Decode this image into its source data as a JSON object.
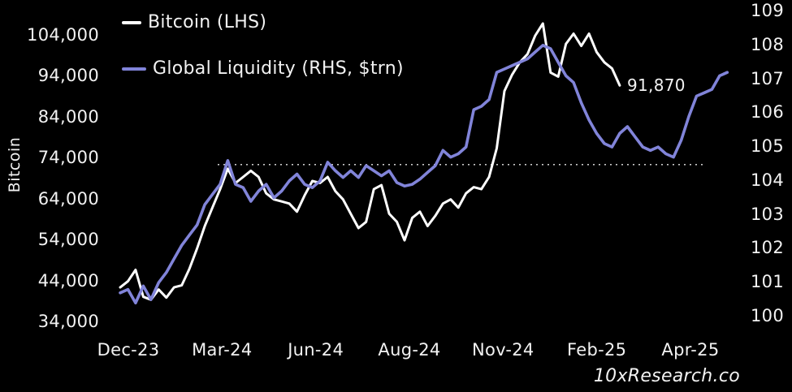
{
  "legend": [
    {
      "label": "Bitcoin (LHS)",
      "color": "#ffffff"
    },
    {
      "label": "Global Liquidity (RHS, $trn)",
      "color": "#8184d9"
    }
  ],
  "annotation": {
    "text": "91,870"
  },
  "watermark": {
    "text": "10xResearch.co"
  },
  "chart_data": {
    "type": "line",
    "title": "",
    "x_start": "Dec-2023",
    "x_interval": "weekly",
    "left_axis": {
      "title": "Bitcoin",
      "range": [
        34000,
        104000
      ],
      "ticks": [
        {
          "label": "104,000",
          "value": 104000
        },
        {
          "label": "94,000",
          "value": 94000
        },
        {
          "label": "84,000",
          "value": 84000
        },
        {
          "label": "74,000",
          "value": 74000
        },
        {
          "label": "64,000",
          "value": 64000
        },
        {
          "label": "54,000",
          "value": 54000
        },
        {
          "label": "44,000",
          "value": 44000
        },
        {
          "label": "34,000",
          "value": 34000
        }
      ]
    },
    "right_axis": {
      "title": "Global Liquidity ($trn)",
      "range": [
        100,
        109
      ],
      "ticks": [
        {
          "label": "109",
          "value": 109
        },
        {
          "label": "108",
          "value": 108
        },
        {
          "label": "107",
          "value": 107
        },
        {
          "label": "106",
          "value": 106
        },
        {
          "label": "105",
          "value": 105
        },
        {
          "label": "104",
          "value": 104
        },
        {
          "label": "103",
          "value": 103
        },
        {
          "label": "102",
          "value": 102
        },
        {
          "label": "101",
          "value": 101
        },
        {
          "label": "100",
          "value": 100
        }
      ]
    },
    "x_axis": {
      "labels": [
        "Dec-23",
        "Mar-24",
        "Jun-24",
        "Aug-24",
        "Nov-24",
        "Feb-25",
        "Apr-25"
      ]
    },
    "reference_line": {
      "axis": "left",
      "value": 72500,
      "style": "dotted"
    },
    "series": [
      {
        "name": "Bitcoin (LHS)",
        "axis": "left",
        "color": "#ffffff",
        "values": [
          42500,
          44000,
          46800,
          40200,
          39500,
          42000,
          40000,
          42500,
          43000,
          47000,
          52000,
          57500,
          62000,
          66500,
          71500,
          68000,
          69500,
          71000,
          69500,
          65500,
          64000,
          63500,
          63000,
          61000,
          65000,
          68500,
          68000,
          69500,
          66000,
          64000,
          60500,
          57000,
          58500,
          66500,
          67500,
          60500,
          58500,
          54000,
          59500,
          61000,
          57500,
          60000,
          63000,
          64000,
          62000,
          65500,
          67000,
          66500,
          69500,
          76500,
          90500,
          94500,
          97500,
          99500,
          104000,
          107000,
          95000,
          94000,
          102000,
          104500,
          101500,
          104500,
          100000,
          97500,
          96000,
          91870
        ]
      },
      {
        "name": "Global Liquidity (RHS, $trn)",
        "axis": "right",
        "color": "#8184d9",
        "values": [
          100.7,
          100.8,
          100.4,
          100.9,
          100.5,
          101.0,
          101.3,
          101.7,
          102.1,
          102.4,
          102.7,
          103.3,
          103.6,
          103.9,
          104.6,
          103.9,
          103.8,
          103.4,
          103.7,
          103.9,
          103.5,
          103.7,
          104.0,
          104.2,
          103.9,
          103.8,
          104.0,
          104.55,
          104.3,
          104.1,
          104.3,
          104.1,
          104.45,
          104.3,
          104.15,
          104.3,
          103.95,
          103.85,
          103.9,
          104.05,
          104.25,
          104.45,
          104.9,
          104.7,
          104.8,
          105.0,
          106.1,
          106.2,
          106.4,
          107.2,
          107.3,
          107.4,
          107.5,
          107.6,
          107.8,
          108.0,
          107.9,
          107.5,
          107.1,
          106.9,
          106.3,
          105.8,
          105.4,
          105.1,
          105.0,
          105.4,
          105.6,
          105.3,
          105.0,
          104.9,
          105.0,
          104.8,
          104.7,
          105.2,
          105.9,
          106.5,
          106.6,
          106.7,
          107.1,
          107.2
        ]
      }
    ]
  }
}
